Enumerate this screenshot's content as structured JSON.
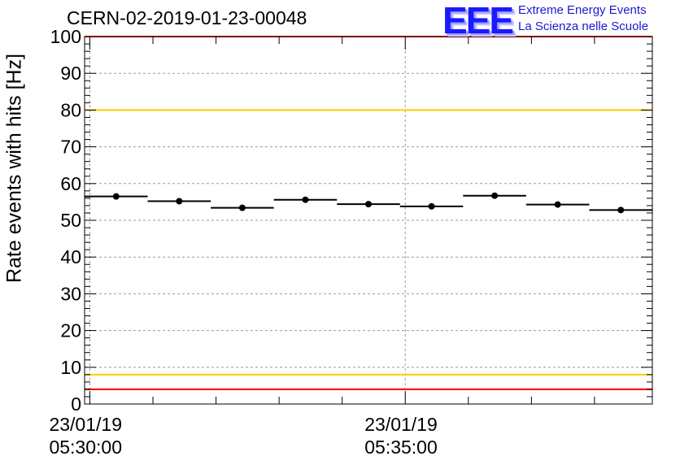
{
  "title": "CERN-02-2019-01-23-00048",
  "logo": {
    "mark": "EEE",
    "line1": "Extreme Energy Events",
    "line2": "La Scienza nelle Scuole"
  },
  "colors": {
    "red_limit": "#ff0000",
    "yellow_limit": "#ffcc00",
    "logo_blue": "#1a1aff",
    "data": "#000000",
    "grid": "#999999"
  },
  "chart_data": {
    "type": "scatter",
    "title": "CERN-02-2019-01-23-00048",
    "ylabel": "Rate events with hits [Hz]",
    "xlabel": "",
    "ylim": [
      0,
      100
    ],
    "yticks": [
      0,
      10,
      20,
      30,
      40,
      50,
      60,
      70,
      80,
      90,
      100
    ],
    "xlim": [
      "2019-01-23 05:29:55",
      "2019-01-23 05:38:55"
    ],
    "xticks": [
      {
        "date": "23/01/19",
        "time": "05:30:00"
      },
      {
        "date": "23/01/19",
        "time": "05:35:00"
      }
    ],
    "grid": true,
    "series": [
      {
        "points": [
          {
            "x_start": "05:29:55",
            "x_end": "05:30:55",
            "y": 56.5
          },
          {
            "x_start": "05:30:55",
            "x_end": "05:31:55",
            "y": 55.2
          },
          {
            "x_start": "05:31:55",
            "x_end": "05:32:55",
            "y": 53.4
          },
          {
            "x_start": "05:32:55",
            "x_end": "05:33:55",
            "y": 55.6
          },
          {
            "x_start": "05:33:55",
            "x_end": "05:34:55",
            "y": 54.4
          },
          {
            "x_start": "05:34:55",
            "x_end": "05:35:55",
            "y": 53.8
          },
          {
            "x_start": "05:35:55",
            "x_end": "05:36:55",
            "y": 56.7
          },
          {
            "x_start": "05:36:55",
            "x_end": "05:37:55",
            "y": 54.3
          },
          {
            "x_start": "05:37:55",
            "x_end": "05:38:55",
            "y": 52.8
          }
        ]
      }
    ],
    "reference_lines": [
      {
        "y": 100,
        "color": "red"
      },
      {
        "y": 4,
        "color": "red"
      },
      {
        "y": 80,
        "color": "yellow"
      },
      {
        "y": 8,
        "color": "yellow"
      }
    ]
  }
}
